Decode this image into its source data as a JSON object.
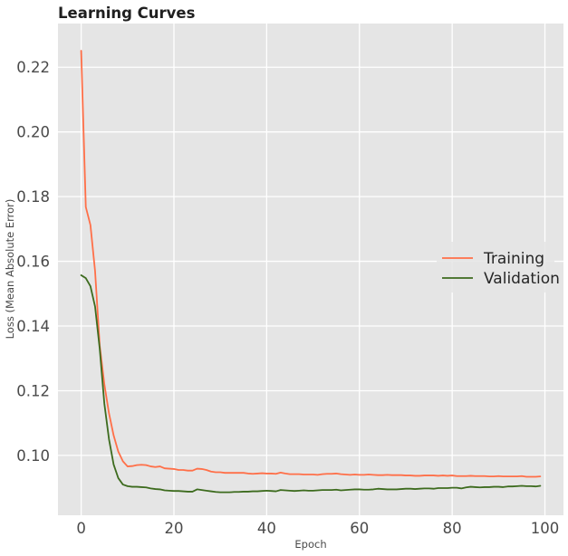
{
  "chart_data": {
    "type": "line",
    "title": "Learning Curves",
    "xlabel": "Epoch",
    "ylabel": "Loss (Mean Absolute Error)",
    "xlim": [
      -5,
      104
    ],
    "ylim": [
      0.0815,
      0.2335
    ],
    "x_ticks": [
      0,
      20,
      40,
      60,
      80,
      100
    ],
    "y_ticks": [
      0.1,
      0.12,
      0.14,
      0.16,
      0.18,
      0.2,
      0.22
    ],
    "grid": true,
    "legend_position": "center-right",
    "background_color": "#e5e5e5",
    "series": [
      {
        "name": "Training",
        "color": "#ff6f48",
        "x_start": 0,
        "values": [
          0.2251,
          0.1768,
          0.1712,
          0.157,
          0.134,
          0.122,
          0.113,
          0.1062,
          0.1012,
          0.0982,
          0.0966,
          0.0967,
          0.097,
          0.0971,
          0.097,
          0.0966,
          0.0964,
          0.0966,
          0.096,
          0.0959,
          0.0958,
          0.0955,
          0.0955,
          0.0953,
          0.0953,
          0.0959,
          0.0958,
          0.0955,
          0.095,
          0.0948,
          0.0948,
          0.0946,
          0.0946,
          0.0946,
          0.0946,
          0.0946,
          0.0944,
          0.0943,
          0.0944,
          0.0945,
          0.0944,
          0.0944,
          0.0943,
          0.0947,
          0.0944,
          0.0942,
          0.0942,
          0.0942,
          0.0941,
          0.0941,
          0.0941,
          0.094,
          0.0942,
          0.0943,
          0.0943,
          0.0944,
          0.0942,
          0.0941,
          0.094,
          0.0941,
          0.094,
          0.094,
          0.0941,
          0.094,
          0.0939,
          0.0939,
          0.094,
          0.0939,
          0.0939,
          0.0939,
          0.0938,
          0.0938,
          0.0937,
          0.0937,
          0.0938,
          0.0938,
          0.0938,
          0.0937,
          0.0938,
          0.0937,
          0.0938,
          0.0936,
          0.0936,
          0.0936,
          0.0937,
          0.0936,
          0.0936,
          0.0936,
          0.0935,
          0.0935,
          0.0936,
          0.0935,
          0.0935,
          0.0935,
          0.0935,
          0.0936,
          0.0934,
          0.0934,
          0.0934,
          0.0935
        ]
      },
      {
        "name": "Validation",
        "color": "#3d6b1e",
        "x_start": 0,
        "values": [
          0.1557,
          0.1548,
          0.1523,
          0.146,
          0.133,
          0.116,
          0.105,
          0.0972,
          0.093,
          0.091,
          0.0905,
          0.0903,
          0.0903,
          0.0902,
          0.0901,
          0.0898,
          0.0896,
          0.0895,
          0.0892,
          0.0891,
          0.089,
          0.089,
          0.0889,
          0.0888,
          0.0888,
          0.0895,
          0.0893,
          0.0891,
          0.0889,
          0.0887,
          0.0886,
          0.0886,
          0.0886,
          0.0887,
          0.0887,
          0.0888,
          0.0888,
          0.0889,
          0.0889,
          0.089,
          0.0891,
          0.089,
          0.0889,
          0.0893,
          0.0892,
          0.0891,
          0.089,
          0.0891,
          0.0892,
          0.0891,
          0.0891,
          0.0892,
          0.0893,
          0.0893,
          0.0893,
          0.0894,
          0.0892,
          0.0893,
          0.0894,
          0.0895,
          0.0895,
          0.0894,
          0.0894,
          0.0895,
          0.0897,
          0.0896,
          0.0895,
          0.0895,
          0.0895,
          0.0896,
          0.0897,
          0.0897,
          0.0896,
          0.0897,
          0.0898,
          0.0898,
          0.0897,
          0.0899,
          0.0899,
          0.0899,
          0.09,
          0.09,
          0.0898,
          0.0901,
          0.0903,
          0.0902,
          0.0901,
          0.0902,
          0.0902,
          0.0903,
          0.0903,
          0.0902,
          0.0904,
          0.0904,
          0.0905,
          0.0906,
          0.0905,
          0.0905,
          0.0904,
          0.0906
        ]
      }
    ]
  }
}
